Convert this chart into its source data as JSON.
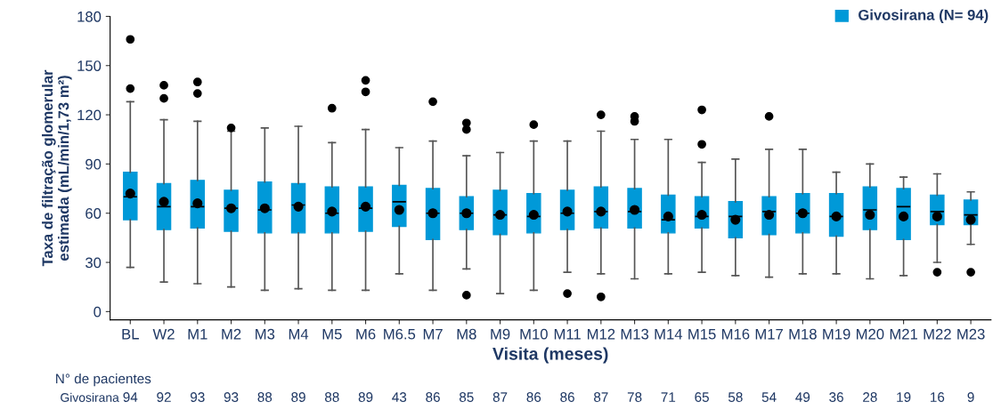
{
  "chart_data": {
    "type": "box",
    "ylabel": "Taxa de filtração glomerular\nestimada (mL/min/1,73 m²)",
    "xlabel": "Visita (meses)",
    "categories": [
      "BL",
      "W2",
      "M1",
      "M2",
      "M3",
      "M4",
      "M5",
      "M6",
      "M6.5",
      "M7",
      "M8",
      "M9",
      "M10",
      "M11",
      "M12",
      "M13",
      "M14",
      "M15",
      "M16",
      "M17",
      "M18",
      "M19",
      "M20",
      "M21",
      "M22",
      "M23"
    ],
    "ylim": [
      -5,
      180
    ],
    "yticks": [
      0,
      30,
      60,
      90,
      120,
      150,
      180
    ],
    "grid": false,
    "legend": "top right",
    "series": [
      {
        "name": "Givosirana (N= 94)",
        "color": "#0099d8",
        "boxes": [
          {
            "low": 27,
            "q1": 56,
            "median": 70,
            "q3": 85,
            "high": 128,
            "mean": 72,
            "outliers": [
              136,
              166
            ]
          },
          {
            "low": 18,
            "q1": 50,
            "median": 64,
            "q3": 78,
            "high": 117,
            "mean": 67,
            "outliers": [
              130,
              138
            ]
          },
          {
            "low": 17,
            "q1": 51,
            "median": 64,
            "q3": 80,
            "high": 116,
            "mean": 66,
            "outliers": [
              133,
              140
            ]
          },
          {
            "low": 15,
            "q1": 49,
            "median": 63,
            "q3": 74,
            "high": 110,
            "mean": 63,
            "outliers": [
              112
            ]
          },
          {
            "low": 13,
            "q1": 48,
            "median": 62,
            "q3": 79,
            "high": 112,
            "mean": 63
          },
          {
            "low": 14,
            "q1": 48,
            "median": 65,
            "q3": 78,
            "high": 113,
            "mean": 64
          },
          {
            "low": 13,
            "q1": 48,
            "median": 60,
            "q3": 76,
            "high": 103,
            "mean": 61,
            "outliers": [
              124
            ]
          },
          {
            "low": 13,
            "q1": 49,
            "median": 63,
            "q3": 76,
            "high": 111,
            "mean": 64,
            "outliers": [
              134,
              141
            ]
          },
          {
            "low": 23,
            "q1": 52,
            "median": 67,
            "q3": 77,
            "high": 100,
            "mean": 62
          },
          {
            "low": 13,
            "q1": 44,
            "median": 60,
            "q3": 75,
            "high": 104,
            "mean": 60,
            "outliers": [
              128
            ]
          },
          {
            "low": 26,
            "q1": 50,
            "median": 60,
            "q3": 70,
            "high": 95,
            "mean": 60,
            "outliers": [
              10,
              111,
              115
            ]
          },
          {
            "low": 11,
            "q1": 47,
            "median": 59,
            "q3": 74,
            "high": 97,
            "mean": 59
          },
          {
            "low": 13,
            "q1": 48,
            "median": 58,
            "q3": 72,
            "high": 104,
            "mean": 59,
            "outliers": [
              114
            ]
          },
          {
            "low": 24,
            "q1": 50,
            "median": 60,
            "q3": 74,
            "high": 104,
            "mean": 61,
            "outliers": [
              11
            ]
          },
          {
            "low": 23,
            "q1": 51,
            "median": 61,
            "q3": 76,
            "high": 110,
            "mean": 61,
            "outliers": [
              9,
              120
            ]
          },
          {
            "low": 20,
            "q1": 51,
            "median": 61,
            "q3": 75,
            "high": 105,
            "mean": 62,
            "outliers": [
              116,
              119
            ]
          },
          {
            "low": 23,
            "q1": 48,
            "median": 56,
            "q3": 71,
            "high": 105,
            "mean": 58
          },
          {
            "low": 24,
            "q1": 51,
            "median": 58,
            "q3": 70,
            "high": 91,
            "mean": 59,
            "outliers": [
              102,
              123
            ]
          },
          {
            "low": 22,
            "q1": 45,
            "median": 58,
            "q3": 67,
            "high": 93,
            "mean": 56
          },
          {
            "low": 21,
            "q1": 47,
            "median": 61,
            "q3": 70,
            "high": 99,
            "mean": 59,
            "outliers": [
              119
            ]
          },
          {
            "low": 23,
            "q1": 48,
            "median": 60,
            "q3": 72,
            "high": 99,
            "mean": 60
          },
          {
            "low": 23,
            "q1": 46,
            "median": 58,
            "q3": 72,
            "high": 85,
            "mean": 58
          },
          {
            "low": 20,
            "q1": 50,
            "median": 62,
            "q3": 76,
            "high": 90,
            "mean": 59
          },
          {
            "low": 22,
            "q1": 44,
            "median": 64,
            "q3": 75,
            "high": 82,
            "mean": 58
          },
          {
            "low": 30,
            "q1": 53,
            "median": 61,
            "q3": 71,
            "high": 84,
            "mean": 58,
            "outliers": [
              24
            ]
          },
          {
            "low": 41,
            "q1": 53,
            "median": 59,
            "q3": 68,
            "high": 73,
            "mean": 56,
            "outliers": [
              24
            ]
          }
        ]
      }
    ],
    "annotations": [
      "N° de pacientes",
      "Givosirana",
      "94",
      "92",
      "93",
      "93",
      "88",
      "89",
      "88",
      "89",
      "43",
      "86",
      "85",
      "87",
      "86",
      "86",
      "87",
      "78",
      "71",
      "65",
      "58",
      "54",
      "49",
      "36",
      "28",
      "19",
      "16",
      "9"
    ]
  }
}
